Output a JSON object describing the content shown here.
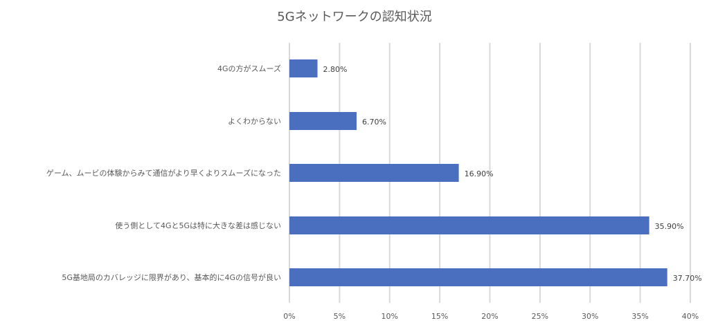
{
  "chart_data": {
    "type": "bar",
    "orientation": "horizontal",
    "title": "5Gネットワークの認知状況",
    "xlabel": "",
    "ylabel": "",
    "categories": [
      "4Gの方がスムーズ",
      "よくわからない",
      "ゲーム、ムービの体験からみて通信がより早くよりスムーズになった",
      "使う側として4Gと5Gは特に大きな差は感じない",
      "5G基地局のカバレッジに限界があり、基本的に4Gの信号が良い"
    ],
    "values": [
      2.8,
      6.7,
      16.9,
      35.9,
      37.7
    ],
    "data_labels": [
      "2.80%",
      "6.70%",
      "16.90%",
      "35.90%",
      "37.70%"
    ],
    "xlim": [
      0,
      40
    ],
    "ticks": [
      0,
      5,
      10,
      15,
      20,
      25,
      30,
      35,
      40
    ],
    "tick_labels": [
      "0%",
      "5%",
      "10%",
      "15%",
      "20%",
      "25%",
      "30%",
      "35%",
      "40%"
    ],
    "grid": true,
    "legend": "none",
    "bar_color": "#4a6fbe",
    "grid_color": "#d9d9d9",
    "text_color": "#595959"
  }
}
